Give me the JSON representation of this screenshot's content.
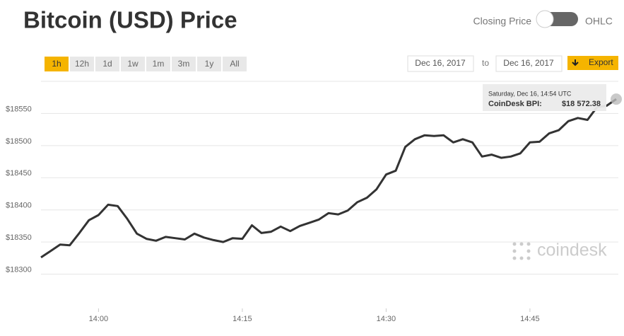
{
  "header": {
    "title": "Bitcoin (USD) Price",
    "toggle_left": "Closing Price",
    "toggle_right": "OHLC"
  },
  "controls": {
    "ranges": [
      "1h",
      "12h",
      "1d",
      "1w",
      "1m",
      "3m",
      "1y",
      "All"
    ],
    "active": 0,
    "date_from": "Dec 16, 2017",
    "to": "to",
    "date_to": "Dec 16, 2017",
    "export": "Export"
  },
  "chart_data": {
    "type": "line",
    "color": "#333333",
    "x": [
      "13:54",
      "13:55",
      "13:56",
      "13:57",
      "13:58",
      "13:59",
      "14:00",
      "14:01",
      "14:02",
      "14:03",
      "14:04",
      "14:05",
      "14:06",
      "14:07",
      "14:08",
      "14:09",
      "14:10",
      "14:11",
      "14:12",
      "14:13",
      "14:14",
      "14:15",
      "14:16",
      "14:17",
      "14:18",
      "14:19",
      "14:20",
      "14:21",
      "14:22",
      "14:23",
      "14:24",
      "14:25",
      "14:26",
      "14:27",
      "14:28",
      "14:29",
      "14:30",
      "14:31",
      "14:32",
      "14:33",
      "14:34",
      "14:35",
      "14:36",
      "14:37",
      "14:38",
      "14:39",
      "14:40",
      "14:41",
      "14:42",
      "14:43",
      "14:44",
      "14:45",
      "14:46",
      "14:47",
      "14:48",
      "14:49",
      "14:50",
      "14:51",
      "14:52",
      "14:53",
      "14:54"
    ],
    "values": [
      18326,
      18336,
      18346,
      18345,
      18364,
      18384,
      18392,
      18408,
      18406,
      18386,
      18363,
      18355,
      18352,
      18358,
      18356,
      18354,
      18363,
      18357,
      18353,
      18350,
      18356,
      18355,
      18376,
      18364,
      18366,
      18374,
      18367,
      18375,
      18380,
      18385,
      18395,
      18393,
      18399,
      18412,
      18419,
      18432,
      18455,
      18461,
      18498,
      18510,
      18516,
      18515,
      18516,
      18505,
      18510,
      18505,
      18483,
      18486,
      18481,
      18483,
      18488,
      18505,
      18506,
      18519,
      18524,
      18538,
      18543,
      18540,
      18560,
      18562,
      18572.38
    ],
    "xlim": [
      "13:54",
      "14:54"
    ],
    "xticks": [
      "14:00",
      "14:15",
      "14:30",
      "14:45"
    ],
    "ylim": [
      18250,
      18600
    ],
    "yticks": [
      {
        "value": 18300,
        "label": "$18300"
      },
      {
        "value": 18350,
        "label": "$18350"
      },
      {
        "value": 18400,
        "label": "$18400"
      },
      {
        "value": 18450,
        "label": "$18450"
      },
      {
        "value": 18500,
        "label": "$18500"
      },
      {
        "value": 18550,
        "label": "$18550"
      }
    ],
    "grid": true,
    "tooltip": {
      "date": "Saturday, Dec 16, 14:54 UTC",
      "label": "CoinDesk BPI:",
      "value": "$18 572.38"
    },
    "watermark": "coindesk"
  }
}
